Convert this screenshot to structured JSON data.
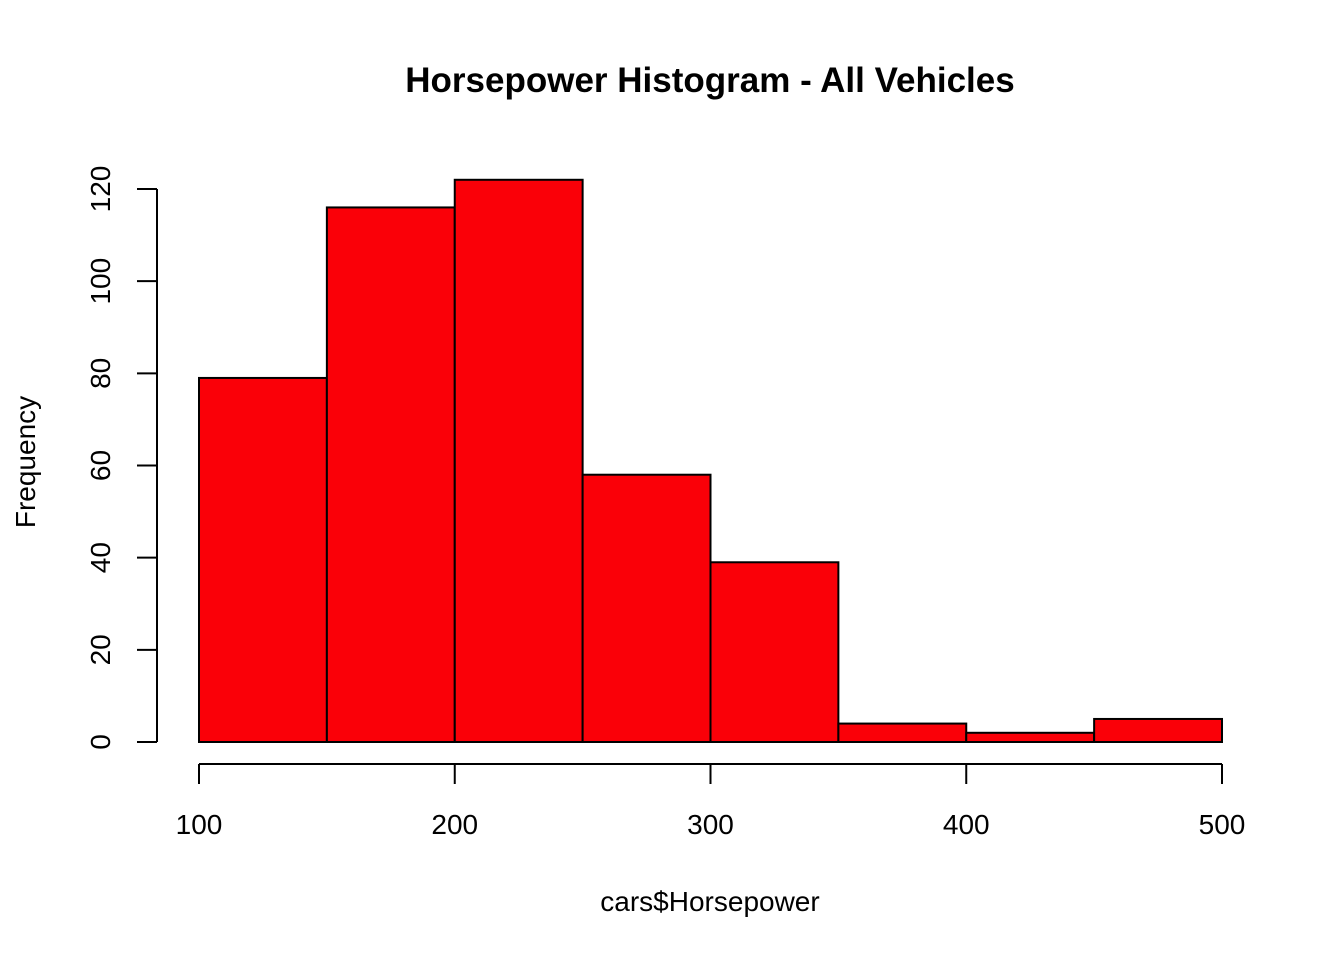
{
  "chart_data": {
    "type": "bar",
    "title": "Horsepower Histogram - All Vehicles",
    "xlabel": "cars$Horsepower",
    "ylabel": "Frequency",
    "bins": [
      {
        "start": 100,
        "end": 150,
        "count": 79
      },
      {
        "start": 150,
        "end": 200,
        "count": 116
      },
      {
        "start": 200,
        "end": 250,
        "count": 122
      },
      {
        "start": 250,
        "end": 300,
        "count": 58
      },
      {
        "start": 300,
        "end": 350,
        "count": 39
      },
      {
        "start": 350,
        "end": 400,
        "count": 4
      },
      {
        "start": 400,
        "end": 450,
        "count": 2
      },
      {
        "start": 450,
        "end": 500,
        "count": 5
      }
    ],
    "xlim": [
      100,
      500
    ],
    "ylim": [
      0,
      120
    ],
    "x_ticks": [
      100,
      200,
      300,
      400,
      500
    ],
    "y_ticks": [
      0,
      20,
      40,
      60,
      80,
      100,
      120
    ],
    "bar_color": "#fa0008",
    "border_color": "#000000",
    "grid": false
  }
}
